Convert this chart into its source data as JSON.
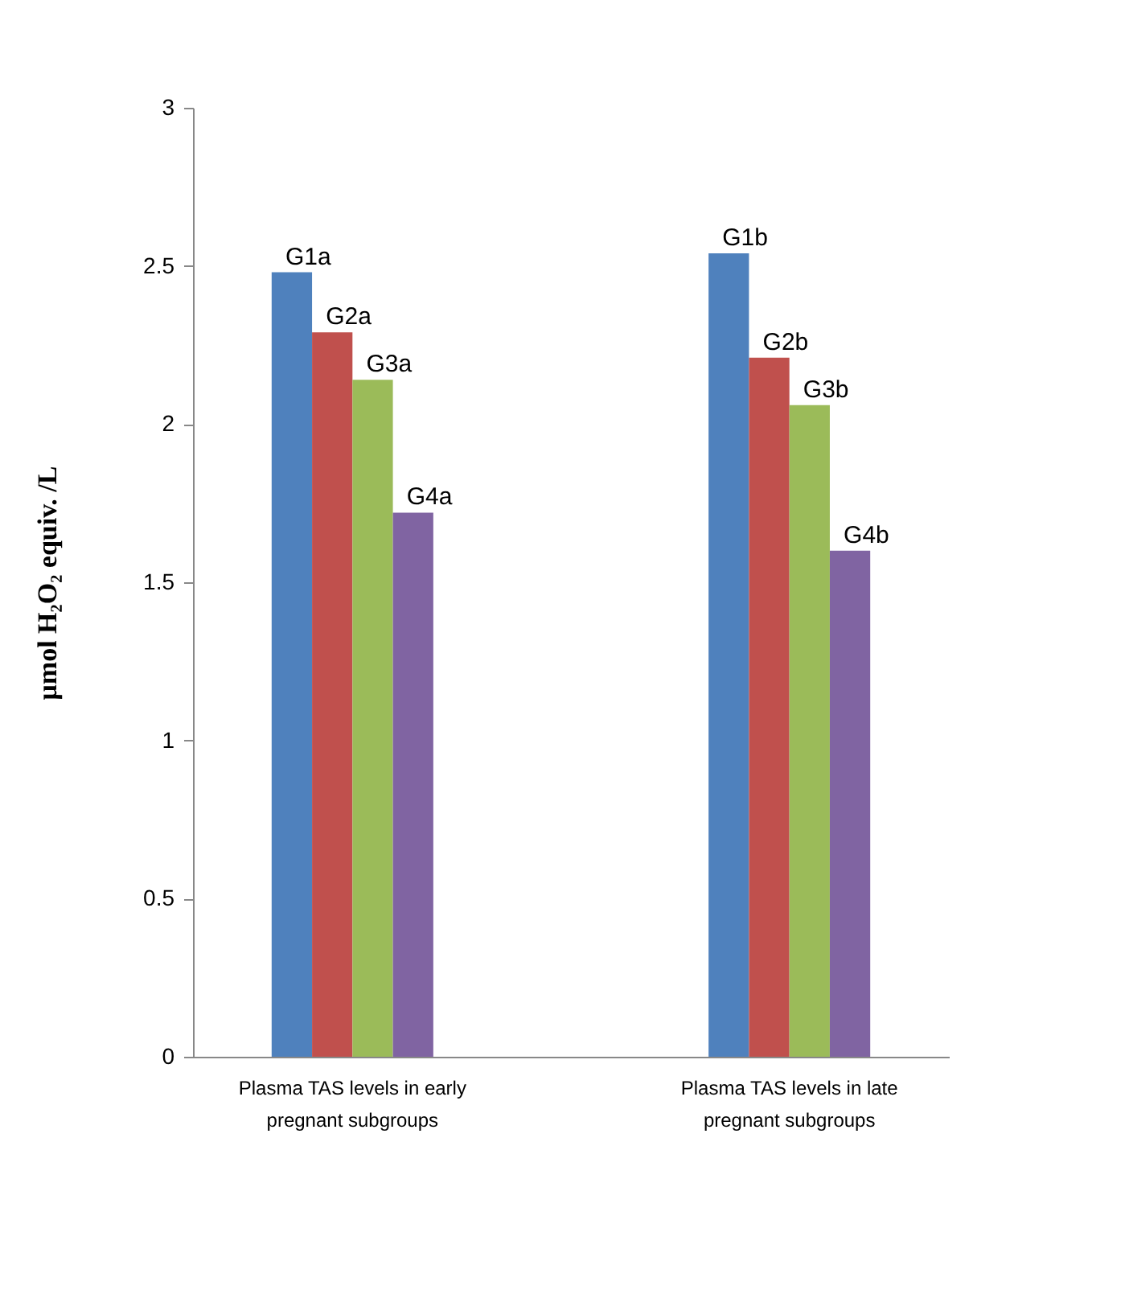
{
  "chart_data": {
    "type": "bar",
    "ylabel": "μmol H₂O₂ equiv. /L",
    "categories": [
      "Plasma TAS levels in early pregnant subgroups",
      "Plasma TAS levels in late pregnant subgroups"
    ],
    "series": [
      {
        "color": "#4f81bd",
        "values": [
          2.48,
          2.54
        ]
      },
      {
        "color": "#c0504d",
        "values": [
          2.29,
          2.21
        ]
      },
      {
        "color": "#9bbb59",
        "values": [
          2.14,
          2.06
        ]
      },
      {
        "color": "#8064a2",
        "values": [
          1.72,
          1.6
        ]
      }
    ],
    "ylim": [
      0,
      3
    ],
    "yticks": [
      0,
      0.5,
      1,
      1.5,
      2,
      2.5,
      3
    ],
    "grid": false,
    "legend": false,
    "annotations": [
      "G1a",
      "G2a",
      "G3a",
      "G4a",
      "G1b",
      "G2b",
      "G3b",
      "G4b"
    ]
  }
}
